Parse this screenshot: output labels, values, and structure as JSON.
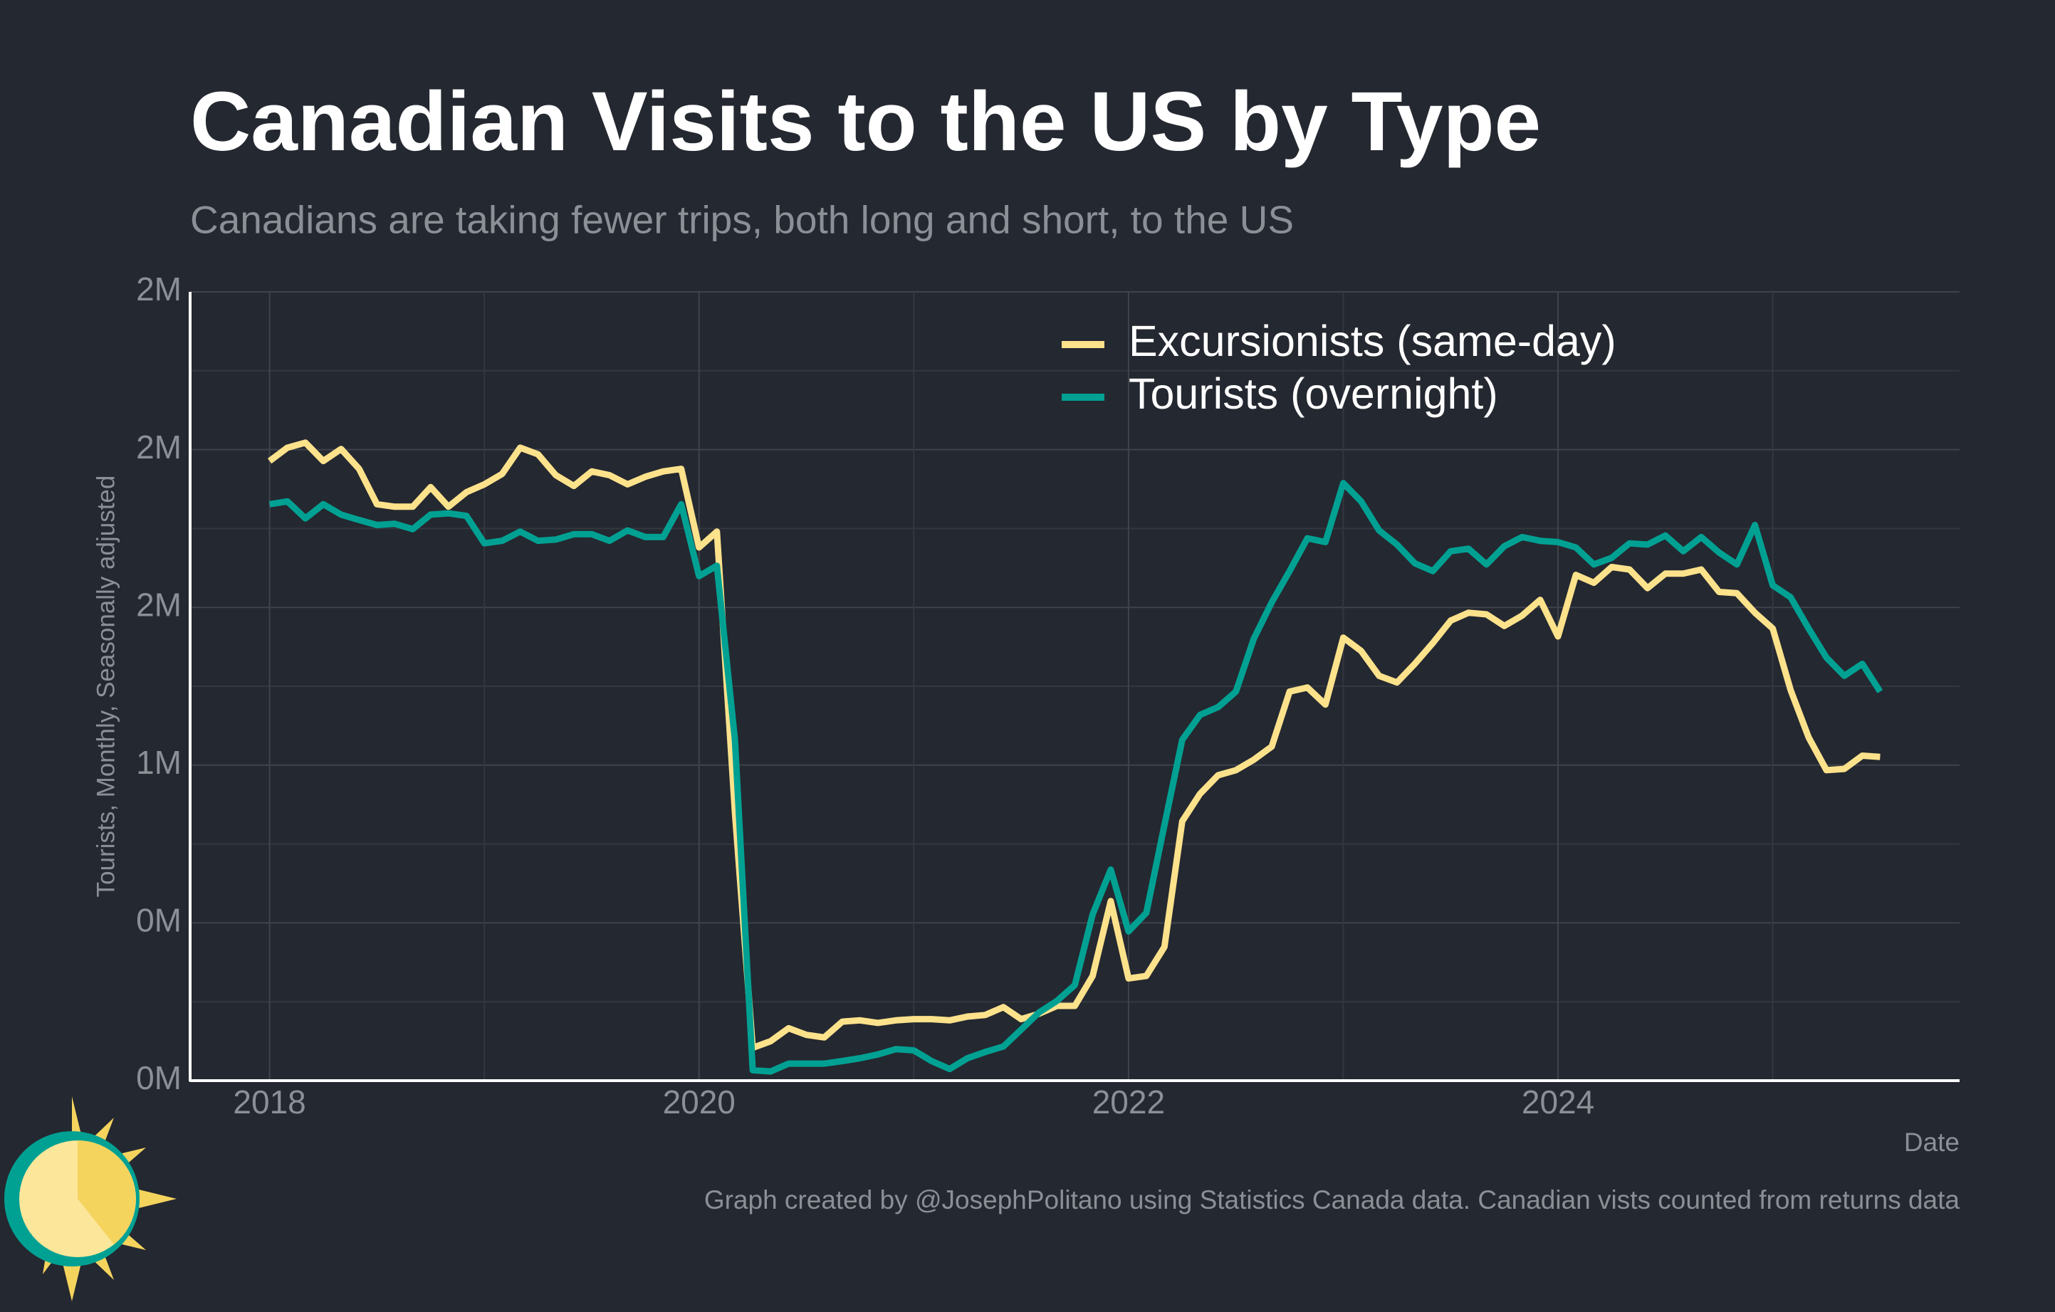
{
  "chart_data": {
    "type": "line",
    "title": "Canadian Visits to the US by Type",
    "subtitle": "Canadians are taking fewer trips, both long and short, to the US",
    "y_label": "Tourists, Monthly, Seasonally adjusted",
    "x_label": "Date",
    "note": "Graph created by @JosephPolitano using Statistics Canada data. Canadian vists counted from returns data",
    "grid": true,
    "legend": "top",
    "xlim": [
      2017.63,
      2025.87
    ],
    "xticks": [
      2018,
      2020,
      2022,
      2024
    ],
    "ylim": [
      0,
      2500000
    ],
    "yticks": [
      {
        "value": 0,
        "label": "0M"
      },
      {
        "value": 500000,
        "label": "0M"
      },
      {
        "value": 1000000,
        "label": "1M"
      },
      {
        "value": 1500000,
        "label": "2M"
      },
      {
        "value": 2000000,
        "label": "2M"
      },
      {
        "value": 2500000,
        "label": "2M"
      }
    ],
    "x": [
      2018,
      2018.083,
      2018.167,
      2018.25,
      2018.333,
      2018.417,
      2018.5,
      2018.583,
      2018.667,
      2018.75,
      2018.833,
      2018.917,
      2019,
      2019.083,
      2019.167,
      2019.25,
      2019.333,
      2019.417,
      2019.5,
      2019.583,
      2019.667,
      2019.75,
      2019.833,
      2019.917,
      2020,
      2020.083,
      2020.167,
      2020.25,
      2020.333,
      2020.417,
      2020.5,
      2020.583,
      2020.667,
      2020.75,
      2020.833,
      2020.917,
      2021,
      2021.083,
      2021.167,
      2021.25,
      2021.333,
      2021.417,
      2021.5,
      2021.583,
      2021.667,
      2021.75,
      2021.833,
      2021.917,
      2022,
      2022.083,
      2022.167,
      2022.25,
      2022.333,
      2022.417,
      2022.5,
      2022.583,
      2022.667,
      2022.75,
      2022.833,
      2022.917,
      2023,
      2023.083,
      2023.167,
      2023.25,
      2023.333,
      2023.417,
      2023.5,
      2023.583,
      2023.667,
      2023.75,
      2023.833,
      2023.917,
      2024,
      2024.083,
      2024.167,
      2024.25,
      2024.333,
      2024.417,
      2024.5,
      2024.583,
      2024.667,
      2024.75,
      2024.833,
      2024.917,
      2025,
      2025.083,
      2025.167,
      2025.25,
      2025.333,
      2025.417,
      2025.5
    ],
    "series": [
      {
        "name": "Excursionists (same-day)",
        "color": "#fde28c",
        "values": [
          1964000,
          2006000,
          2022000,
          1964000,
          2002000,
          1939000,
          1827000,
          1819000,
          1819000,
          1881000,
          1819000,
          1865000,
          1890000,
          1923000,
          2006000,
          1985000,
          1919000,
          1885000,
          1931000,
          1919000,
          1890000,
          1914000,
          1931000,
          1939000,
          1690000,
          1740000,
          851000,
          104000,
          125000,
          166000,
          145000,
          137000,
          187000,
          191000,
          183000,
          191000,
          195000,
          195000,
          191000,
          203000,
          208000,
          233000,
          195000,
          212000,
          237000,
          237000,
          332000,
          569000,
          324000,
          332000,
          424000,
          822000,
          909000,
          968000,
          984000,
          1017000,
          1059000,
          1233000,
          1246000,
          1192000,
          1404000,
          1362000,
          1283000,
          1262000,
          1321000,
          1387000,
          1458000,
          1483000,
          1478000,
          1441000,
          1474000,
          1524000,
          1408000,
          1603000,
          1578000,
          1628000,
          1620000,
          1561000,
          1607000,
          1607000,
          1620000,
          1549000,
          1545000,
          1483000,
          1433000,
          1238000,
          1088000,
          984000,
          988000,
          1030000,
          1026000
        ]
      },
      {
        "name": "Tourists (overnight)",
        "color": "#00a193",
        "values": [
          1827000,
          1836000,
          1782000,
          1827000,
          1794000,
          1777000,
          1761000,
          1765000,
          1748000,
          1794000,
          1798000,
          1790000,
          1703000,
          1711000,
          1740000,
          1711000,
          1715000,
          1732000,
          1732000,
          1711000,
          1744000,
          1723000,
          1723000,
          1827000,
          1599000,
          1632000,
          1080000,
          33000,
          29000,
          54000,
          54000,
          54000,
          62000,
          71000,
          83000,
          100000,
          96000,
          62000,
          37000,
          71000,
          91000,
          108000,
          162000,
          216000,
          253000,
          303000,
          527000,
          669000,
          473000,
          532000,
          810000,
          1080000,
          1159000,
          1184000,
          1233000,
          1400000,
          1516000,
          1615000,
          1719000,
          1707000,
          1894000,
          1836000,
          1744000,
          1699000,
          1640000,
          1615000,
          1678000,
          1686000,
          1636000,
          1694000,
          1723000,
          1711000,
          1707000,
          1690000,
          1636000,
          1657000,
          1703000,
          1699000,
          1728000,
          1678000,
          1723000,
          1674000,
          1636000,
          1761000,
          1570000,
          1532000,
          1433000,
          1341000,
          1283000,
          1321000,
          1233000
        ]
      }
    ]
  }
}
